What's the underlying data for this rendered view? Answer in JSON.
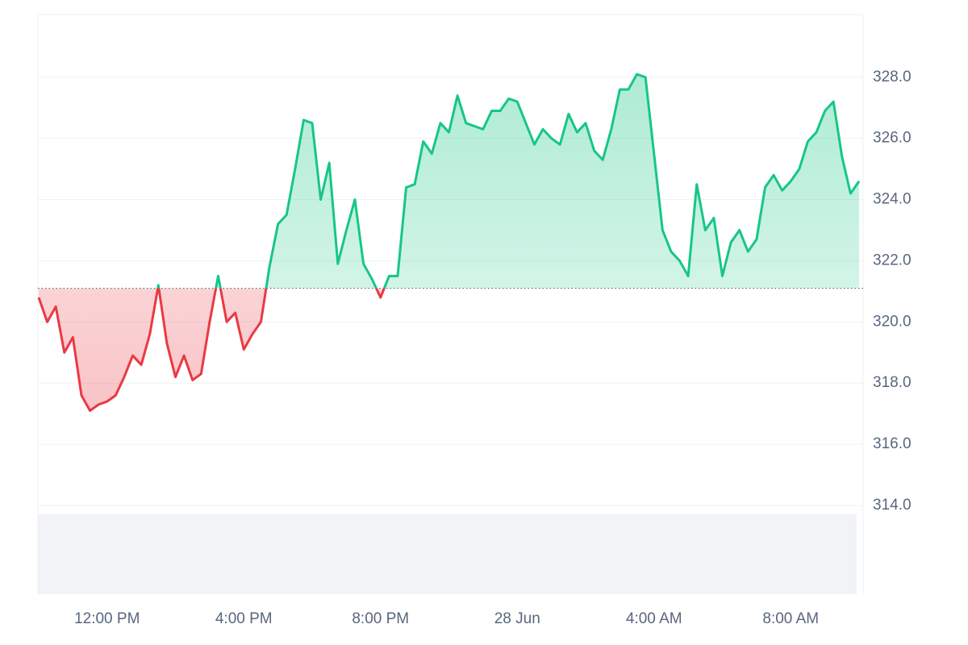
{
  "chart_data": {
    "type": "line",
    "categories": [
      null,
      null,
      null,
      null,
      null,
      null,
      null,
      null,
      "12:00 PM",
      null,
      null,
      null,
      null,
      null,
      null,
      null,
      null,
      null,
      null,
      null,
      null,
      null,
      null,
      null,
      "4:00 PM",
      null,
      null,
      null,
      null,
      null,
      null,
      null,
      null,
      null,
      null,
      null,
      null,
      null,
      null,
      null,
      "8:00 PM",
      null,
      null,
      null,
      null,
      null,
      null,
      null,
      null,
      null,
      null,
      null,
      null,
      null,
      null,
      null,
      "28 Jun",
      null,
      null,
      null,
      null,
      null,
      null,
      null,
      null,
      null,
      null,
      null,
      null,
      null,
      null,
      null,
      "4:00 AM",
      null,
      null,
      null,
      null,
      null,
      null,
      null,
      null,
      null,
      null,
      null,
      null,
      null,
      null,
      null,
      "8:00 AM",
      null,
      null,
      null,
      null,
      null,
      null,
      null,
      null
    ],
    "series": [
      {
        "color": "#16c784",
        "negative_color": "#ea3943",
        "values": [
          320.8,
          320.0,
          320.5,
          319.0,
          319.5,
          317.6,
          317.1,
          317.3,
          317.4,
          317.6,
          318.2,
          318.9,
          318.6,
          319.6,
          321.2,
          319.3,
          318.2,
          318.9,
          318.1,
          318.3,
          320.0,
          321.5,
          320.0,
          320.3,
          319.1,
          319.6,
          320.0,
          321.8,
          323.2,
          323.5,
          325.0,
          326.6,
          326.5,
          324.0,
          325.2,
          321.9,
          323.0,
          324.0,
          321.9,
          321.4,
          320.8,
          321.5,
          321.5,
          324.4,
          324.5,
          325.9,
          325.5,
          326.5,
          326.2,
          327.4,
          326.5,
          326.4,
          326.3,
          326.9,
          326.9,
          327.3,
          327.2,
          326.5,
          325.8,
          326.3,
          326.0,
          325.8,
          326.8,
          326.2,
          326.5,
          325.6,
          325.3,
          326.3,
          327.6,
          327.6,
          328.1,
          328.0,
          325.5,
          323.0,
          322.3,
          322.0,
          321.5,
          324.5,
          323.0,
          323.4,
          321.5,
          322.6,
          323.0,
          322.3,
          322.7,
          324.4,
          324.8,
          324.3,
          324.6,
          325.0,
          325.9,
          326.2,
          326.9,
          327.2,
          325.4,
          324.2,
          324.6
        ]
      }
    ],
    "baseline": 321.1,
    "ylim": [
      311.1,
      330.05
    ],
    "yticks": [
      {
        "value": 314,
        "label": "314.0"
      },
      {
        "value": 316,
        "label": "316.0"
      },
      {
        "value": 318,
        "label": "318.0"
      },
      {
        "value": 320,
        "label": "320.0"
      },
      {
        "value": 322,
        "label": "322.0"
      },
      {
        "value": 324,
        "label": "324.0"
      },
      {
        "value": 326,
        "label": "326.0"
      },
      {
        "value": 328,
        "label": "328.0"
      }
    ],
    "grid": true
  }
}
